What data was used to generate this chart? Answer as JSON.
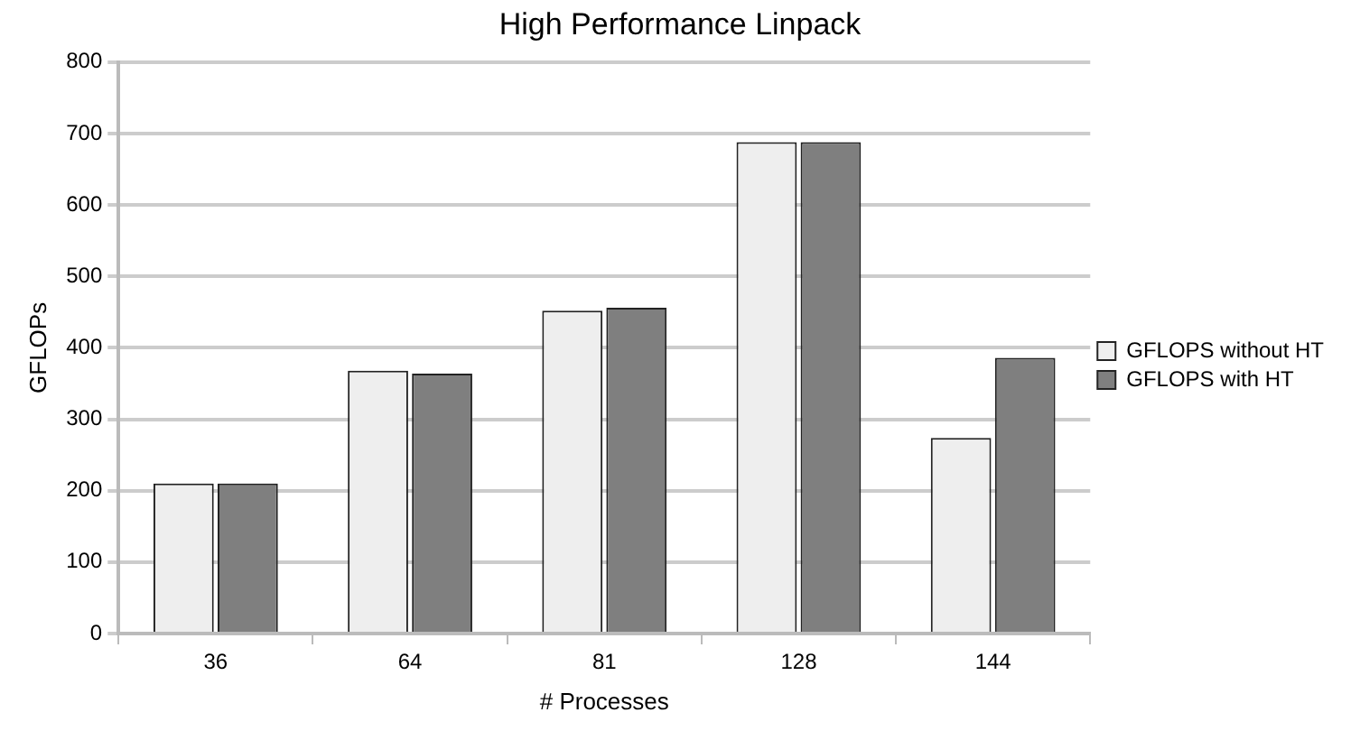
{
  "chart_data": {
    "type": "bar",
    "title": "High Performance Linpack",
    "xlabel": "# Processes",
    "ylabel": "GFLOPs",
    "categories": [
      "36",
      "64",
      "81",
      "128",
      "144"
    ],
    "series": [
      {
        "name": "GFLOPS without HT",
        "color": "#eeeeee",
        "values": [
          210,
          368,
          452,
          688,
          274
        ]
      },
      {
        "name": "GFLOPS with HT",
        "color": "#7f7f7f",
        "values": [
          210,
          364,
          456,
          688,
          386
        ]
      }
    ],
    "ylim": [
      0,
      800
    ],
    "yticks": [
      0,
      100,
      200,
      300,
      400,
      500,
      600,
      700,
      800
    ],
    "grid": "y",
    "legend": "right"
  }
}
